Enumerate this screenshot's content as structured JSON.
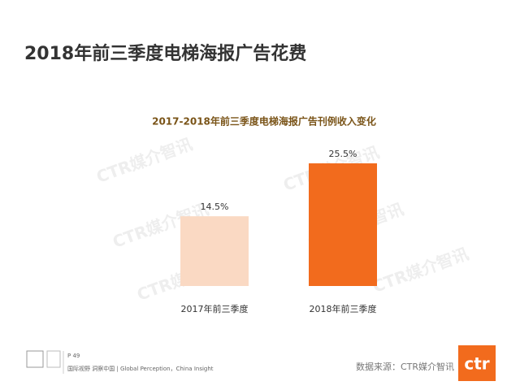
{
  "header": {
    "title": "2018年前三季度电梯海报广告花费"
  },
  "chart_data": {
    "type": "bar",
    "title": "2017-2018年前三季度电梯海报广告刊例收入变化",
    "categories": [
      "2017年前三季度",
      "2018年前三季度"
    ],
    "values": [
      14.5,
      25.5
    ],
    "value_labels": [
      "14.5%",
      "25.5%"
    ],
    "colors": [
      "#fad9c3",
      "#f26b1d"
    ]
  },
  "watermark": "CTR媒介智讯",
  "footer": {
    "page": "P 49",
    "tagline": "国际视野 洞察中国 | Global Perception，China Insight",
    "source": "数据来源：CTR媒介智讯",
    "logo": "ctr"
  }
}
